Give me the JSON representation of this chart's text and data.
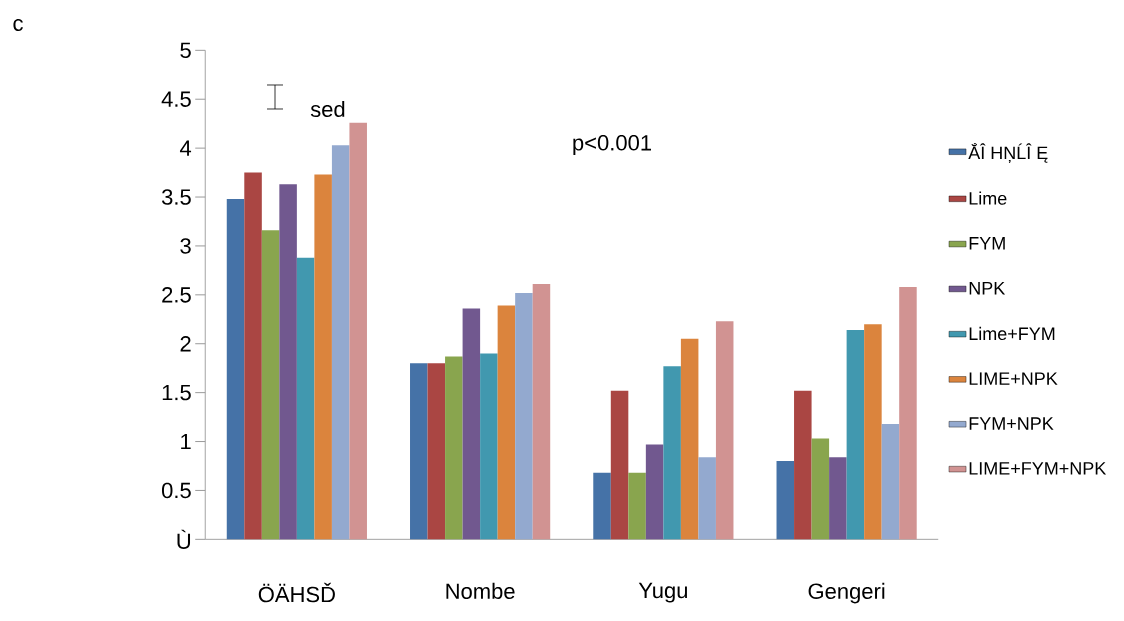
{
  "chart_data": {
    "type": "bar",
    "categories": [
      "ÖÄHSĎ",
      "Nombe",
      "Yugu",
      "Gengeri"
    ],
    "series": [
      {
        "name": "ẮÎ HŅĹÎ Ę",
        "color": "#4572a7",
        "values": [
          3.48,
          1.8,
          0.68,
          0.8
        ]
      },
      {
        "name": "Lime",
        "color": "#aa4643",
        "values": [
          3.75,
          1.8,
          1.52,
          1.52
        ]
      },
      {
        "name": "FYM",
        "color": "#89a54e",
        "values": [
          3.16,
          1.87,
          0.68,
          1.03
        ]
      },
      {
        "name": "NPK",
        "color": "#71588f",
        "values": [
          3.63,
          2.36,
          0.97,
          0.84
        ]
      },
      {
        "name": "Lime+FYM",
        "color": "#4198af",
        "values": [
          2.88,
          1.9,
          1.77,
          2.14
        ]
      },
      {
        "name": "LIME+NPK",
        "color": "#db843d",
        "values": [
          3.73,
          2.39,
          2.05,
          2.2
        ]
      },
      {
        "name": "FYM+NPK",
        "color": "#93a9cf",
        "values": [
          4.03,
          2.52,
          0.84,
          1.18
        ]
      },
      {
        "name": "LIME+FYM+NPK",
        "color": "#d19392",
        "values": [
          4.26,
          2.61,
          2.23,
          2.58
        ]
      }
    ],
    "ylim": [
      0,
      5
    ],
    "yticks": [
      {
        "value": 0,
        "label": "Ù"
      },
      0.5,
      1,
      1.5,
      2,
      2.5,
      3,
      3.5,
      4,
      4.5,
      5
    ],
    "legend": "right",
    "annotations": [
      "c",
      "sed",
      "p<0.001"
    ]
  }
}
